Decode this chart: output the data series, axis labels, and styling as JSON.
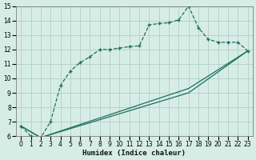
{
  "xlabel": "Humidex (Indice chaleur)",
  "xlim": [
    -0.5,
    23.5
  ],
  "ylim": [
    6,
    15
  ],
  "xticks": [
    0,
    1,
    2,
    3,
    4,
    5,
    6,
    7,
    8,
    9,
    10,
    11,
    12,
    13,
    14,
    15,
    16,
    17,
    18,
    19,
    20,
    21,
    22,
    23
  ],
  "yticks": [
    6,
    7,
    8,
    9,
    10,
    11,
    12,
    13,
    14,
    15
  ],
  "background_color": "#d6ede6",
  "grid_color": "#b0d0c8",
  "line_color": "#1e6e5e",
  "line1_x": [
    0,
    1,
    2,
    3,
    4,
    5,
    6,
    7,
    8,
    9,
    10,
    11,
    12,
    13,
    14,
    15,
    16,
    17,
    18,
    19,
    20,
    21,
    22,
    23
  ],
  "line1_y": [
    6.7,
    6.0,
    5.9,
    7.0,
    9.5,
    10.5,
    11.1,
    11.5,
    12.0,
    12.0,
    12.1,
    12.2,
    12.25,
    13.7,
    13.8,
    13.85,
    14.05,
    15.0,
    13.5,
    12.7,
    12.5,
    12.5,
    12.5,
    11.9
  ],
  "line2_x": [
    0,
    2,
    17,
    23
  ],
  "line2_y": [
    6.7,
    5.9,
    9.3,
    11.9
  ],
  "line3_x": [
    0,
    2,
    17,
    23
  ],
  "line3_y": [
    6.7,
    5.9,
    9.0,
    11.9
  ]
}
